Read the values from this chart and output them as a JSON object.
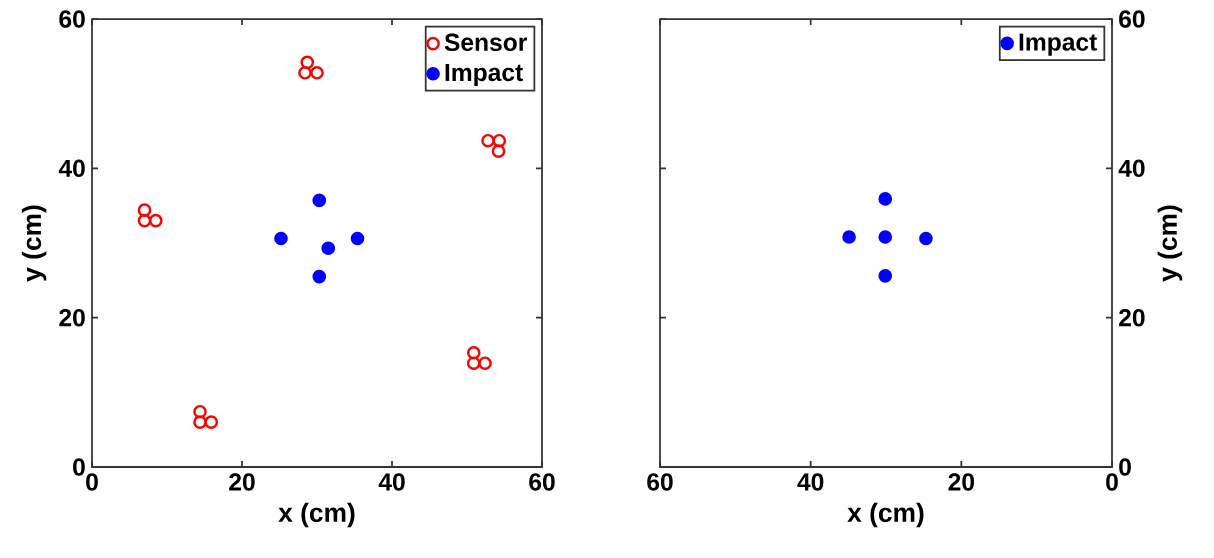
{
  "chart_data": [
    {
      "type": "scatter",
      "xlabel": "x (cm)",
      "ylabel": "y (cm)",
      "xlim": [
        0,
        60
      ],
      "ylim": [
        0,
        60
      ],
      "xticks": [
        0,
        20,
        40,
        60
      ],
      "yticks": [
        0,
        20,
        40,
        60
      ],
      "legend": "top right",
      "grid": false,
      "series": [
        {
          "name": "Sensor",
          "color": "#ff0000",
          "marker": "circle",
          "x": [
            28.7,
            28.4,
            30.0,
            52.8,
            54.3,
            54.2,
            7.0,
            7.0,
            8.5,
            50.9,
            50.9,
            52.4,
            14.4,
            14.4,
            15.9
          ],
          "values": [
            54.2,
            52.8,
            52.8,
            43.7,
            43.7,
            42.3,
            34.4,
            33.0,
            33.0,
            15.3,
            13.9,
            13.9,
            7.4,
            6.0,
            6.0
          ]
        },
        {
          "name": "Impact",
          "color": "#0000ff",
          "marker": "circle",
          "x": [
            30.3,
            25.2,
            35.4,
            31.5,
            30.3
          ],
          "values": [
            35.7,
            30.6,
            30.6,
            29.3,
            25.5
          ]
        }
      ]
    },
    {
      "type": "scatter",
      "xlabel": "x (cm)",
      "ylabel": "y (cm)",
      "xlim": [
        60,
        0
      ],
      "ylim": [
        0,
        60
      ],
      "xticks": [
        60,
        40,
        20,
        0
      ],
      "yticks": [
        0,
        20,
        40,
        60
      ],
      "legend": "top right",
      "grid": false,
      "series": [
        {
          "name": "Impact",
          "color": "#0000ff",
          "marker": "circle",
          "x": [
            30.1,
            34.9,
            30.1,
            24.7,
            30.1
          ],
          "values": [
            35.9,
            30.8,
            30.8,
            30.6,
            25.6
          ]
        }
      ]
    }
  ]
}
